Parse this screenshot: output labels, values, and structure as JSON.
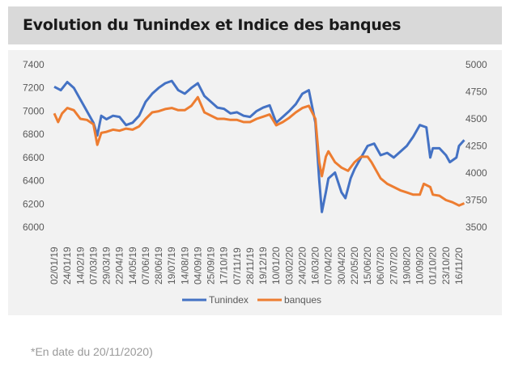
{
  "header": {
    "title": "Evolution du Tunindex et Indice des banques"
  },
  "footnote": "*En date du 20/11/2020)",
  "chart_data": {
    "type": "line",
    "title": "Evolution du Tunindex et Indice des banques",
    "categories": [
      "02/01/19",
      "24/01/19",
      "14/02/19",
      "07/03/19",
      "29/03/19",
      "22/04/19",
      "14/05/19",
      "07/06/19",
      "28/06/19",
      "19/07/19",
      "14/08/19",
      "04/09/19",
      "25/09/19",
      "17/10/19",
      "07/11/19",
      "28/11/19",
      "19/12/19",
      "10/01/20",
      "03/02/20",
      "24/02/20",
      "16/03/20",
      "07/04/20",
      "30/04/20",
      "22/05/20",
      "15/06/20",
      "06/07/20",
      "27/07/20",
      "19/08/20",
      "10/09/20",
      "01/10/20",
      "23/10/20",
      "16/11/20"
    ],
    "y_left": {
      "ticks": [
        6000,
        6200,
        6400,
        6600,
        6800,
        7000,
        7200,
        7400
      ],
      "range": [
        6000,
        7400
      ]
    },
    "y_right": {
      "ticks": [
        3500,
        3750,
        4000,
        4250,
        4500,
        4750,
        5000
      ],
      "range": [
        3500,
        5000
      ]
    },
    "legend": "bottom",
    "series": [
      {
        "name": "Tunindex",
        "axis": "left",
        "color": "#4472c4",
        "points": [
          [
            0,
            7210
          ],
          [
            0.5,
            7180
          ],
          [
            1,
            7250
          ],
          [
            1.5,
            7200
          ],
          [
            2,
            7100
          ],
          [
            2.5,
            7000
          ],
          [
            3,
            6900
          ],
          [
            3.3,
            6790
          ],
          [
            3.6,
            6960
          ],
          [
            4,
            6930
          ],
          [
            4.5,
            6960
          ],
          [
            5,
            6950
          ],
          [
            5.5,
            6880
          ],
          [
            6,
            6900
          ],
          [
            6.5,
            6960
          ],
          [
            7,
            7080
          ],
          [
            7.5,
            7150
          ],
          [
            8,
            7200
          ],
          [
            8.5,
            7240
          ],
          [
            9,
            7260
          ],
          [
            9.5,
            7180
          ],
          [
            10,
            7150
          ],
          [
            10.5,
            7200
          ],
          [
            11,
            7240
          ],
          [
            11.5,
            7130
          ],
          [
            12,
            7080
          ],
          [
            12.5,
            7030
          ],
          [
            13,
            7020
          ],
          [
            13.5,
            6980
          ],
          [
            14,
            6990
          ],
          [
            14.5,
            6960
          ],
          [
            15,
            6950
          ],
          [
            15.5,
            7000
          ],
          [
            16,
            7030
          ],
          [
            16.5,
            7050
          ],
          [
            17,
            6900
          ],
          [
            17.5,
            6950
          ],
          [
            18,
            7000
          ],
          [
            18.5,
            7060
          ],
          [
            19,
            7150
          ],
          [
            19.5,
            7180
          ],
          [
            20,
            6900
          ],
          [
            20.3,
            6400
          ],
          [
            20.5,
            6130
          ],
          [
            20.8,
            6300
          ],
          [
            21,
            6420
          ],
          [
            21.5,
            6470
          ],
          [
            22,
            6300
          ],
          [
            22.3,
            6250
          ],
          [
            22.7,
            6420
          ],
          [
            23,
            6500
          ],
          [
            23.5,
            6600
          ],
          [
            24,
            6700
          ],
          [
            24.5,
            6720
          ],
          [
            25,
            6620
          ],
          [
            25.5,
            6640
          ],
          [
            26,
            6600
          ],
          [
            26.5,
            6650
          ],
          [
            27,
            6700
          ],
          [
            27.5,
            6780
          ],
          [
            28,
            6880
          ],
          [
            28.5,
            6860
          ],
          [
            28.8,
            6600
          ],
          [
            29,
            6680
          ],
          [
            29.5,
            6680
          ],
          [
            30,
            6620
          ],
          [
            30.3,
            6560
          ],
          [
            30.8,
            6600
          ],
          [
            31,
            6700
          ],
          [
            31.4,
            6750
          ]
        ]
      },
      {
        "name": "banques",
        "axis": "right",
        "color": "#ed7d31",
        "points": [
          [
            0,
            4550
          ],
          [
            0.3,
            4470
          ],
          [
            0.6,
            4550
          ],
          [
            1,
            4600
          ],
          [
            1.5,
            4580
          ],
          [
            2,
            4500
          ],
          [
            2.5,
            4490
          ],
          [
            3,
            4450
          ],
          [
            3.3,
            4260
          ],
          [
            3.6,
            4370
          ],
          [
            4,
            4380
          ],
          [
            4.5,
            4400
          ],
          [
            5,
            4390
          ],
          [
            5.5,
            4410
          ],
          [
            6,
            4400
          ],
          [
            6.5,
            4430
          ],
          [
            7,
            4500
          ],
          [
            7.5,
            4560
          ],
          [
            8,
            4570
          ],
          [
            8.5,
            4590
          ],
          [
            9,
            4600
          ],
          [
            9.5,
            4580
          ],
          [
            10,
            4580
          ],
          [
            10.5,
            4620
          ],
          [
            11,
            4700
          ],
          [
            11.5,
            4560
          ],
          [
            12,
            4530
          ],
          [
            12.5,
            4500
          ],
          [
            13,
            4500
          ],
          [
            13.5,
            4490
          ],
          [
            14,
            4490
          ],
          [
            14.5,
            4470
          ],
          [
            15,
            4470
          ],
          [
            15.5,
            4500
          ],
          [
            16,
            4520
          ],
          [
            16.5,
            4540
          ],
          [
            17,
            4440
          ],
          [
            17.5,
            4470
          ],
          [
            18,
            4510
          ],
          [
            18.5,
            4560
          ],
          [
            19,
            4600
          ],
          [
            19.5,
            4620
          ],
          [
            20,
            4500
          ],
          [
            20.3,
            4100
          ],
          [
            20.5,
            3970
          ],
          [
            20.8,
            4150
          ],
          [
            21,
            4200
          ],
          [
            21.5,
            4100
          ],
          [
            22,
            4050
          ],
          [
            22.5,
            4020
          ],
          [
            23,
            4100
          ],
          [
            23.5,
            4150
          ],
          [
            24,
            4150
          ],
          [
            24.3,
            4100
          ],
          [
            25,
            3950
          ],
          [
            25.5,
            3900
          ],
          [
            26,
            3870
          ],
          [
            26.5,
            3840
          ],
          [
            27,
            3820
          ],
          [
            27.5,
            3800
          ],
          [
            28,
            3800
          ],
          [
            28.3,
            3900
          ],
          [
            28.8,
            3870
          ],
          [
            29,
            3800
          ],
          [
            29.5,
            3790
          ],
          [
            30,
            3750
          ],
          [
            30.5,
            3730
          ],
          [
            31,
            3700
          ],
          [
            31.4,
            3720
          ]
        ]
      }
    ]
  }
}
